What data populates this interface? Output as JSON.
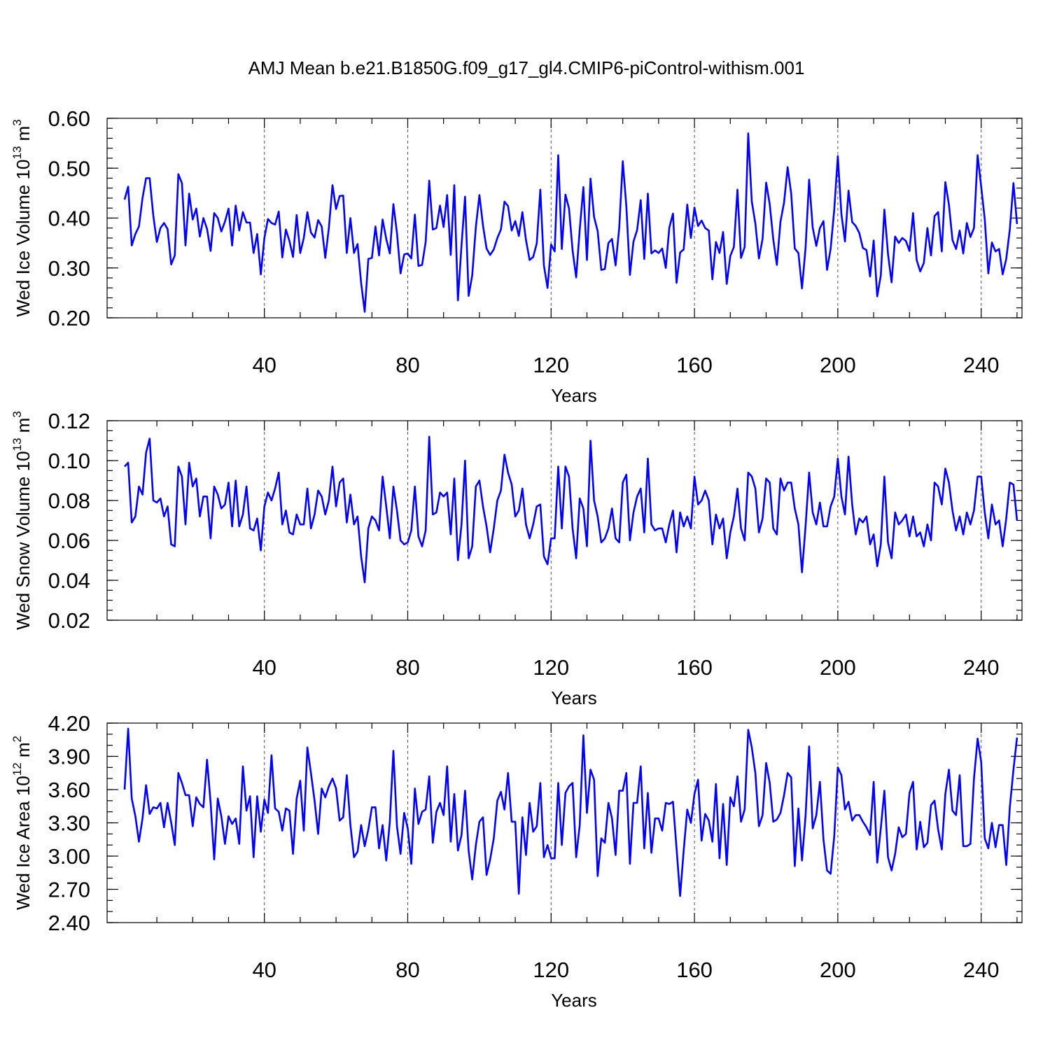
{
  "chart_data": {
    "type": "line",
    "title": "AMJ Mean b.e21.B1850G.f09_g17_gl4.CMIP6-piControl-withism.001",
    "line_color": "#0000ff",
    "grid": "vertical dashed at major x ticks",
    "x_range": [
      1,
      251
    ],
    "x_major_ticks": [
      40,
      80,
      120,
      160,
      200,
      240
    ],
    "x_minor_step": 10,
    "panels": [
      {
        "name": "ice-volume",
        "xlabel": "Years",
        "ylabel_main": "Wed Ice Volume 10",
        "ylabel_exp": "13",
        "ylabel_unit": " m",
        "ylabel_unit_exp": "3",
        "ylim": [
          0.2,
          0.6
        ],
        "y_major_ticks": [
          0.2,
          0.3,
          0.4,
          0.5,
          0.6
        ],
        "y_tick_labels": [
          "0.20",
          "0.30",
          "0.40",
          "0.50",
          "0.60"
        ],
        "y_minor_step": 0.02,
        "series": [
          {
            "name": "Wed Ice Volume",
            "values": [
              0.437,
              0.463,
              0.345,
              0.368,
              0.383,
              0.44,
              0.48,
              0.48,
              0.405,
              0.352,
              0.38,
              0.39,
              0.378,
              0.307,
              0.325,
              0.488,
              0.47,
              0.345,
              0.449,
              0.397,
              0.419,
              0.363,
              0.4,
              0.378,
              0.334,
              0.41,
              0.4,
              0.373,
              0.393,
              0.419,
              0.345,
              0.425,
              0.375,
              0.412,
              0.391,
              0.391,
              0.33,
              0.368,
              0.287,
              0.36,
              0.398,
              0.39,
              0.387,
              0.413,
              0.321,
              0.377,
              0.354,
              0.322,
              0.406,
              0.33,
              0.36,
              0.412,
              0.371,
              0.361,
              0.396,
              0.383,
              0.32,
              0.38,
              0.466,
              0.418,
              0.444,
              0.445,
              0.33,
              0.4,
              0.33,
              0.348,
              0.27,
              0.212,
              0.318,
              0.32,
              0.383,
              0.325,
              0.397,
              0.358,
              0.329,
              0.428,
              0.37,
              0.289,
              0.327,
              0.329,
              0.319,
              0.407,
              0.304,
              0.306,
              0.352,
              0.475,
              0.377,
              0.38,
              0.425,
              0.382,
              0.446,
              0.326,
              0.466,
              0.235,
              0.345,
              0.443,
              0.244,
              0.285,
              0.382,
              0.446,
              0.385,
              0.339,
              0.326,
              0.337,
              0.36,
              0.377,
              0.433,
              0.424,
              0.375,
              0.394,
              0.364,
              0.412,
              0.356,
              0.316,
              0.322,
              0.349,
              0.457,
              0.305,
              0.26,
              0.347,
              0.333,
              0.526,
              0.338,
              0.447,
              0.419,
              0.335,
              0.281,
              0.377,
              0.462,
              0.316,
              0.479,
              0.402,
              0.374,
              0.296,
              0.298,
              0.35,
              0.358,
              0.305,
              0.38,
              0.514,
              0.423,
              0.286,
              0.353,
              0.376,
              0.436,
              0.318,
              0.449,
              0.329,
              0.335,
              0.33,
              0.339,
              0.3,
              0.381,
              0.409,
              0.27,
              0.331,
              0.337,
              0.427,
              0.36,
              0.421,
              0.384,
              0.395,
              0.38,
              0.375,
              0.277,
              0.352,
              0.33,
              0.372,
              0.268,
              0.324,
              0.342,
              0.457,
              0.32,
              0.342,
              0.57,
              0.433,
              0.389,
              0.319,
              0.358,
              0.471,
              0.428,
              0.357,
              0.306,
              0.393,
              0.431,
              0.502,
              0.449,
              0.339,
              0.33,
              0.259,
              0.34,
              0.477,
              0.381,
              0.344,
              0.38,
              0.394,
              0.296,
              0.338,
              0.417,
              0.524,
              0.408,
              0.353,
              0.455,
              0.392,
              0.384,
              0.37,
              0.34,
              0.336,
              0.283,
              0.355,
              0.243,
              0.285,
              0.417,
              0.328,
              0.271,
              0.363,
              0.35,
              0.36,
              0.354,
              0.334,
              0.41,
              0.316,
              0.293,
              0.31,
              0.38,
              0.325,
              0.404,
              0.412,
              0.333,
              0.472,
              0.427,
              0.356,
              0.338,
              0.375,
              0.329,
              0.39,
              0.362,
              0.38,
              0.526,
              0.463,
              0.398,
              0.289,
              0.351,
              0.333,
              0.338,
              0.287,
              0.318,
              0.377,
              0.47,
              0.388
            ]
          }
        ]
      },
      {
        "name": "snow-volume",
        "xlabel": "Years",
        "ylabel_main": "Wed Snow Volume 10",
        "ylabel_exp": "13",
        "ylabel_unit": " m",
        "ylabel_unit_exp": "3",
        "ylim": [
          0.02,
          0.12
        ],
        "y_major_ticks": [
          0.02,
          0.04,
          0.06,
          0.08,
          0.1,
          0.12
        ],
        "y_tick_labels": [
          "0.02",
          "0.04",
          "0.06",
          "0.08",
          "0.10",
          "0.12"
        ],
        "y_minor_step": 0.005,
        "series": [
          {
            "name": "Wed Snow Volume",
            "values": [
              0.097,
              0.099,
              0.069,
              0.072,
              0.087,
              0.083,
              0.104,
              0.111,
              0.08,
              0.079,
              0.081,
              0.072,
              0.077,
              0.058,
              0.057,
              0.097,
              0.092,
              0.068,
              0.099,
              0.087,
              0.091,
              0.072,
              0.082,
              0.082,
              0.061,
              0.087,
              0.083,
              0.076,
              0.078,
              0.089,
              0.067,
              0.09,
              0.067,
              0.073,
              0.087,
              0.066,
              0.065,
              0.071,
              0.055,
              0.077,
              0.084,
              0.08,
              0.086,
              0.094,
              0.068,
              0.075,
              0.064,
              0.063,
              0.073,
              0.068,
              0.068,
              0.086,
              0.066,
              0.073,
              0.085,
              0.082,
              0.073,
              0.08,
              0.097,
              0.077,
              0.089,
              0.091,
              0.069,
              0.083,
              0.068,
              0.072,
              0.052,
              0.039,
              0.066,
              0.072,
              0.07,
              0.065,
              0.092,
              0.077,
              0.061,
              0.087,
              0.075,
              0.06,
              0.058,
              0.059,
              0.065,
              0.087,
              0.062,
              0.057,
              0.065,
              0.112,
              0.073,
              0.074,
              0.084,
              0.082,
              0.084,
              0.063,
              0.091,
              0.05,
              0.068,
              0.1,
              0.051,
              0.057,
              0.087,
              0.09,
              0.077,
              0.067,
              0.054,
              0.066,
              0.08,
              0.085,
              0.103,
              0.094,
              0.088,
              0.072,
              0.075,
              0.086,
              0.068,
              0.061,
              0.068,
              0.077,
              0.078,
              0.052,
              0.048,
              0.061,
              0.061,
              0.097,
              0.066,
              0.097,
              0.092,
              0.066,
              0.051,
              0.081,
              0.076,
              0.057,
              0.11,
              0.08,
              0.072,
              0.059,
              0.061,
              0.066,
              0.076,
              0.061,
              0.059,
              0.089,
              0.093,
              0.06,
              0.074,
              0.082,
              0.086,
              0.064,
              0.101,
              0.068,
              0.065,
              0.066,
              0.066,
              0.059,
              0.068,
              0.075,
              0.054,
              0.074,
              0.067,
              0.072,
              0.066,
              0.092,
              0.078,
              0.08,
              0.085,
              0.08,
              0.058,
              0.073,
              0.066,
              0.071,
              0.051,
              0.064,
              0.072,
              0.086,
              0.066,
              0.06,
              0.094,
              0.092,
              0.086,
              0.064,
              0.071,
              0.091,
              0.089,
              0.066,
              0.063,
              0.091,
              0.085,
              0.089,
              0.089,
              0.076,
              0.068,
              0.044,
              0.067,
              0.094,
              0.074,
              0.068,
              0.079,
              0.067,
              0.067,
              0.077,
              0.082,
              0.101,
              0.082,
              0.073,
              0.102,
              0.078,
              0.063,
              0.071,
              0.069,
              0.072,
              0.058,
              0.063,
              0.047,
              0.058,
              0.092,
              0.059,
              0.051,
              0.074,
              0.068,
              0.07,
              0.073,
              0.062,
              0.072,
              0.062,
              0.064,
              0.057,
              0.068,
              0.06,
              0.089,
              0.087,
              0.078,
              0.096,
              0.089,
              0.075,
              0.065,
              0.072,
              0.063,
              0.074,
              0.068,
              0.075,
              0.092,
              0.092,
              0.074,
              0.061,
              0.078,
              0.068,
              0.07,
              0.057,
              0.071,
              0.089,
              0.088,
              0.07
            ]
          }
        ]
      },
      {
        "name": "ice-area",
        "xlabel": "Years",
        "ylabel_main": "Wed Ice Area 10",
        "ylabel_exp": "12",
        "ylabel_unit": " m",
        "ylabel_unit_exp": "2",
        "ylim": [
          2.4,
          4.2
        ],
        "y_major_ticks": [
          2.4,
          2.7,
          3.0,
          3.3,
          3.6,
          3.9,
          4.2
        ],
        "y_tick_labels": [
          "2.40",
          "2.70",
          "3.00",
          "3.30",
          "3.60",
          "3.90",
          "4.20"
        ],
        "y_minor_step": 0.1,
        "series": [
          {
            "name": "Wed Ice Area",
            "values": [
              3.6,
              4.15,
              3.52,
              3.36,
              3.13,
              3.34,
              3.64,
              3.38,
              3.44,
              3.43,
              3.48,
              3.26,
              3.48,
              3.3,
              3.1,
              3.75,
              3.66,
              3.55,
              3.55,
              3.27,
              3.53,
              3.47,
              3.44,
              3.87,
              3.48,
              2.97,
              3.52,
              3.36,
              3.11,
              3.36,
              3.29,
              3.34,
              3.11,
              3.81,
              3.41,
              3.54,
              2.99,
              3.54,
              3.22,
              3.51,
              3.39,
              3.91,
              3.43,
              3.4,
              3.23,
              3.43,
              3.41,
              3.02,
              3.52,
              3.68,
              3.23,
              3.98,
              3.75,
              3.5,
              3.2,
              3.61,
              3.53,
              3.63,
              3.7,
              3.61,
              3.32,
              3.35,
              3.73,
              3.28,
              2.99,
              3.04,
              3.28,
              3.09,
              3.24,
              3.44,
              3.44,
              3.07,
              3.28,
              2.96,
              3.31,
              3.95,
              3.27,
              3.02,
              3.39,
              3.25,
              2.93,
              3.61,
              3.29,
              3.4,
              3.42,
              3.72,
              3.12,
              3.4,
              3.48,
              3.37,
              3.81,
              3.13,
              3.56,
              3.05,
              3.19,
              3.59,
              3.05,
              2.79,
              3.1,
              3.31,
              3.35,
              2.83,
              2.97,
              3.16,
              3.5,
              3.58,
              3.42,
              3.75,
              3.31,
              3.31,
              2.66,
              3.35,
              3.01,
              3.48,
              3.22,
              3.27,
              3.66,
              2.99,
              3.1,
              2.98,
              2.98,
              3.66,
              3.1,
              3.57,
              3.63,
              3.66,
              2.99,
              3.28,
              4.09,
              3.39,
              3.78,
              3.69,
              2.82,
              3.16,
              3.12,
              3.48,
              3.34,
              3.01,
              3.59,
              3.59,
              3.75,
              2.93,
              3.48,
              3.48,
              3.81,
              3.07,
              3.57,
              3.03,
              3.34,
              3.34,
              3.23,
              3.48,
              3.47,
              3.49,
              3.07,
              2.64,
              3.05,
              3.42,
              3.3,
              3.56,
              3.69,
              3.14,
              3.38,
              3.32,
              3.13,
              3.65,
              2.98,
              3.47,
              2.92,
              3.53,
              3.45,
              3.72,
              3.31,
              3.42,
              4.14,
              3.98,
              3.75,
              3.27,
              3.37,
              3.84,
              3.66,
              3.31,
              3.33,
              3.39,
              3.55,
              3.75,
              3.71,
              2.91,
              3.43,
              2.96,
              3.36,
              3.99,
              3.25,
              3.37,
              3.67,
              3.15,
              2.87,
              2.84,
              3.18,
              3.8,
              3.73,
              3.42,
              3.49,
              3.32,
              3.37,
              3.37,
              3.31,
              3.26,
              3.19,
              3.67,
              2.94,
              3.25,
              3.59,
              2.99,
              2.87,
              3.02,
              3.26,
              3.17,
              3.2,
              3.57,
              3.67,
              3.06,
              3.31,
              3.08,
              3.12,
              3.46,
              3.5,
              3.24,
              3.06,
              3.56,
              3.78,
              3.41,
              3.37,
              3.73,
              3.09,
              3.09,
              3.11,
              3.7,
              4.06,
              3.85,
              3.16,
              3.07,
              3.3,
              3.08,
              3.28,
              3.28,
              2.92,
              3.44,
              3.78,
              4.07
            ]
          }
        ]
      }
    ]
  }
}
